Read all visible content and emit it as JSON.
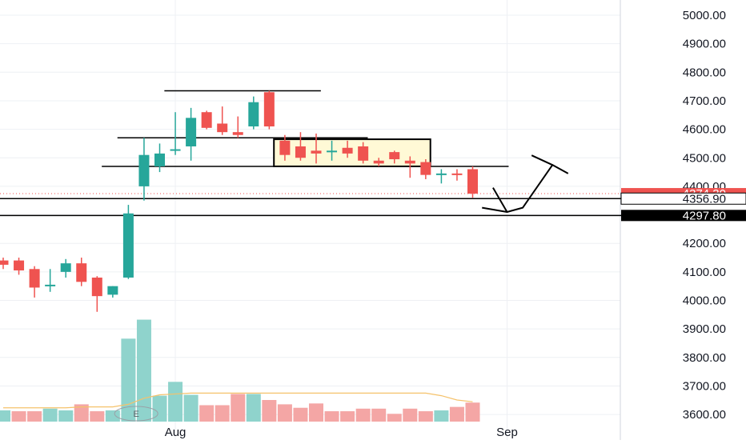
{
  "chart_data": {
    "type": "candlestick",
    "title": "",
    "xlabel": "",
    "ylabel": "",
    "ylim": [
      3570,
      5040
    ],
    "grid": true,
    "y_ticks": [
      3600,
      3700,
      3800,
      3900,
      4000,
      4100,
      4200,
      4300,
      4400,
      4500,
      4600,
      4700,
      4800,
      4900,
      5000
    ],
    "y_tick_labels": [
      "3600.00",
      "3700.00",
      "3800.00",
      "3900.00",
      "4000.00",
      "4100.00",
      "4200.00",
      "4300.00",
      "4400.00",
      "4500.00",
      "4600.00",
      "4700.00",
      "4800.00",
      "4900.00",
      "5000.00"
    ],
    "x_ticks": [
      {
        "label": "Aug",
        "index": 11
      },
      {
        "label": "Sep",
        "index": 32.2
      }
    ],
    "colors": {
      "up": "#26a69a",
      "down": "#ef5350",
      "up_volume": "#8fd3cc",
      "down_volume": "#f4a6a5",
      "volume_ma": "#f5c26b",
      "box_fill": "#fff9d6",
      "grid": "#eef0f4",
      "separator": "#d1d4dc",
      "marker": "#000000",
      "price_badge": "#ef5350"
    },
    "candles": [
      {
        "o": 4140,
        "h": 4150,
        "l": 4110,
        "c": 4125
      },
      {
        "o": 4140,
        "h": 4150,
        "l": 4090,
        "c": 4105
      },
      {
        "o": 4110,
        "h": 4120,
        "l": 4010,
        "c": 4045
      },
      {
        "o": 4050,
        "h": 4110,
        "l": 4030,
        "c": 4055
      },
      {
        "o": 4100,
        "h": 4145,
        "l": 4080,
        "c": 4130
      },
      {
        "o": 4130,
        "h": 4150,
        "l": 4050,
        "c": 4065
      },
      {
        "o": 4080,
        "h": 4085,
        "l": 3960,
        "c": 4015
      },
      {
        "o": 4020,
        "h": 4050,
        "l": 4010,
        "c": 4050
      },
      {
        "o": 4080,
        "h": 4335,
        "l": 4075,
        "c": 4305
      },
      {
        "o": 4400,
        "h": 4570,
        "l": 4350,
        "c": 4510
      },
      {
        "o": 4470,
        "h": 4550,
        "l": 4450,
        "c": 4515
      },
      {
        "o": 4530,
        "h": 4660,
        "l": 4510,
        "c": 4530
      },
      {
        "o": 4540,
        "h": 4675,
        "l": 4490,
        "c": 4640
      },
      {
        "o": 4660,
        "h": 4665,
        "l": 4600,
        "c": 4605
      },
      {
        "o": 4620,
        "h": 4680,
        "l": 4580,
        "c": 4590
      },
      {
        "o": 4590,
        "h": 4645,
        "l": 4570,
        "c": 4580
      },
      {
        "o": 4610,
        "h": 4715,
        "l": 4600,
        "c": 4695
      },
      {
        "o": 4730,
        "h": 4735,
        "l": 4600,
        "c": 4610
      },
      {
        "o": 4560,
        "h": 4580,
        "l": 4490,
        "c": 4510
      },
      {
        "o": 4540,
        "h": 4590,
        "l": 4490,
        "c": 4500
      },
      {
        "o": 4525,
        "h": 4585,
        "l": 4480,
        "c": 4515
      },
      {
        "o": 4520,
        "h": 4560,
        "l": 4490,
        "c": 4525
      },
      {
        "o": 4535,
        "h": 4560,
        "l": 4500,
        "c": 4515
      },
      {
        "o": 4540,
        "h": 4555,
        "l": 4480,
        "c": 4490
      },
      {
        "o": 4490,
        "h": 4500,
        "l": 4470,
        "c": 4480
      },
      {
        "o": 4520,
        "h": 4525,
        "l": 4480,
        "c": 4495
      },
      {
        "o": 4490,
        "h": 4505,
        "l": 4430,
        "c": 4480
      },
      {
        "o": 4485,
        "h": 4495,
        "l": 4425,
        "c": 4440
      },
      {
        "o": 4440,
        "h": 4460,
        "l": 4410,
        "c": 4445
      },
      {
        "o": 4445,
        "h": 4460,
        "l": 4420,
        "c": 4440
      },
      {
        "o": 4460,
        "h": 4470,
        "l": 4360,
        "c": 4374.3
      }
    ],
    "volume": [
      {
        "v": 13,
        "dir": "up"
      },
      {
        "v": 12,
        "dir": "down"
      },
      {
        "v": 12,
        "dir": "down"
      },
      {
        "v": 15,
        "dir": "up"
      },
      {
        "v": 13,
        "dir": "up"
      },
      {
        "v": 20,
        "dir": "down"
      },
      {
        "v": 12,
        "dir": "down"
      },
      {
        "v": 13,
        "dir": "up"
      },
      {
        "v": 96,
        "dir": "up"
      },
      {
        "v": 118,
        "dir": "up"
      },
      {
        "v": 30,
        "dir": "up"
      },
      {
        "v": 46,
        "dir": "up"
      },
      {
        "v": 31,
        "dir": "up"
      },
      {
        "v": 19,
        "dir": "down"
      },
      {
        "v": 19,
        "dir": "down"
      },
      {
        "v": 32,
        "dir": "down"
      },
      {
        "v": 32,
        "dir": "up"
      },
      {
        "v": 25,
        "dir": "down"
      },
      {
        "v": 20,
        "dir": "down"
      },
      {
        "v": 16,
        "dir": "down"
      },
      {
        "v": 21,
        "dir": "down"
      },
      {
        "v": 12,
        "dir": "down"
      },
      {
        "v": 12,
        "dir": "down"
      },
      {
        "v": 15,
        "dir": "down"
      },
      {
        "v": 15,
        "dir": "down"
      },
      {
        "v": 9,
        "dir": "down"
      },
      {
        "v": 15,
        "dir": "down"
      },
      {
        "v": 12,
        "dir": "down"
      },
      {
        "v": 13,
        "dir": "up"
      },
      {
        "v": 17,
        "dir": "down"
      },
      {
        "v": 22,
        "dir": "down"
      }
    ],
    "volume_ma": [
      16,
      16,
      16,
      16,
      16,
      17,
      17,
      17,
      20,
      27,
      31,
      32,
      33,
      33,
      33,
      33,
      33,
      33,
      33,
      33,
      33,
      33,
      33,
      33,
      33,
      33,
      33,
      33,
      30,
      25,
      23
    ],
    "annotations": {
      "horizontal_levels": [
        {
          "price": 4735,
          "from": 10.3,
          "to": 20.3
        },
        {
          "price": 4570,
          "from": 7.3,
          "to": 23.3
        },
        {
          "price": 4470,
          "from": 6.3,
          "to": 32.3
        }
      ],
      "consolidation_box": {
        "from": 17.3,
        "to": 27.3,
        "top": 4565,
        "bottom": 4470
      },
      "support_lines": [
        {
          "price": 4356.9,
          "label": "4356.90"
        },
        {
          "price": 4297.8,
          "label": "4297.80"
        }
      ],
      "last_price": {
        "price": 4374.3,
        "label": "4374.30"
      },
      "projection_path": [
        {
          "i": 31.3,
          "p": 4395
        },
        {
          "i": 32.2,
          "p": 4310
        },
        {
          "i": 33.2,
          "p": 4325
        },
        {
          "i": 35.1,
          "p": 4475
        },
        {
          "i": 36.1,
          "p": 4445
        }
      ],
      "projection_tick": [
        {
          "i": 30.6,
          "p": 4325
        },
        {
          "i": 32.2,
          "p": 4310
        }
      ],
      "event_badge": {
        "label": "E",
        "index": 8.5
      }
    }
  }
}
